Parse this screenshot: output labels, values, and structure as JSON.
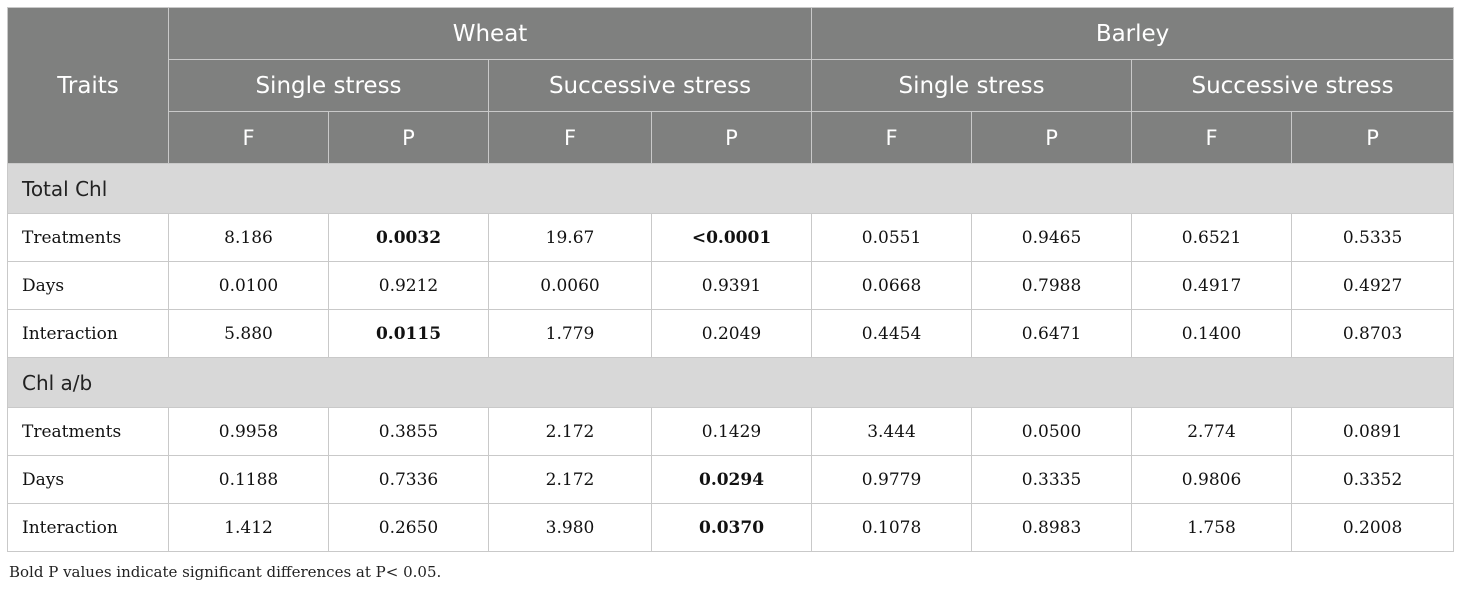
{
  "header": {
    "traits": "Traits",
    "crops": [
      "Wheat",
      "Barley"
    ],
    "stress_types": [
      "Single stress",
      "Successive stress",
      "Single stress",
      "Successive stress"
    ],
    "stats": [
      "F",
      "P",
      "F",
      "P",
      "F",
      "P",
      "F",
      "P"
    ]
  },
  "sections": [
    {
      "title": "Total Chl",
      "rows": [
        {
          "label": "Treatments",
          "values": [
            "8.186",
            "0.0032",
            "19.67",
            "<0.0001",
            "0.0551",
            "0.9465",
            "0.6521",
            "0.5335"
          ],
          "bold": [
            false,
            true,
            false,
            true,
            false,
            false,
            false,
            false
          ]
        },
        {
          "label": "Days",
          "values": [
            "0.0100",
            "0.9212",
            "0.0060",
            "0.9391",
            "0.0668",
            "0.7988",
            "0.4917",
            "0.4927"
          ],
          "bold": [
            false,
            false,
            false,
            false,
            false,
            false,
            false,
            false
          ]
        },
        {
          "label": "Interaction",
          "values": [
            "5.880",
            "0.0115",
            "1.779",
            "0.2049",
            "0.4454",
            "0.6471",
            "0.1400",
            "0.8703"
          ],
          "bold": [
            false,
            true,
            false,
            false,
            false,
            false,
            false,
            false
          ]
        }
      ]
    },
    {
      "title": "Chl a/b",
      "rows": [
        {
          "label": "Treatments",
          "values": [
            "0.9958",
            "0.3855",
            "2.172",
            "0.1429",
            "3.444",
            "0.0500",
            "2.774",
            "0.0891"
          ],
          "bold": [
            false,
            false,
            false,
            false,
            false,
            false,
            false,
            false
          ]
        },
        {
          "label": "Days",
          "values": [
            "0.1188",
            "0.7336",
            "2.172",
            "0.0294",
            "0.9779",
            "0.3335",
            "0.9806",
            "0.3352"
          ],
          "bold": [
            false,
            false,
            false,
            true,
            false,
            false,
            false,
            false
          ]
        },
        {
          "label": "Interaction",
          "values": [
            "1.412",
            "0.2650",
            "3.980",
            "0.0370",
            "0.1078",
            "0.8983",
            "1.758",
            "0.2008"
          ],
          "bold": [
            false,
            false,
            false,
            true,
            false,
            false,
            false,
            false
          ]
        }
      ]
    }
  ],
  "footnote": "Bold P values indicate significant differences at P< 0.05.",
  "colors": {
    "header_bg": "#7f807f",
    "section_bg": "#d8d8d8",
    "border": "#c9c9c9"
  }
}
